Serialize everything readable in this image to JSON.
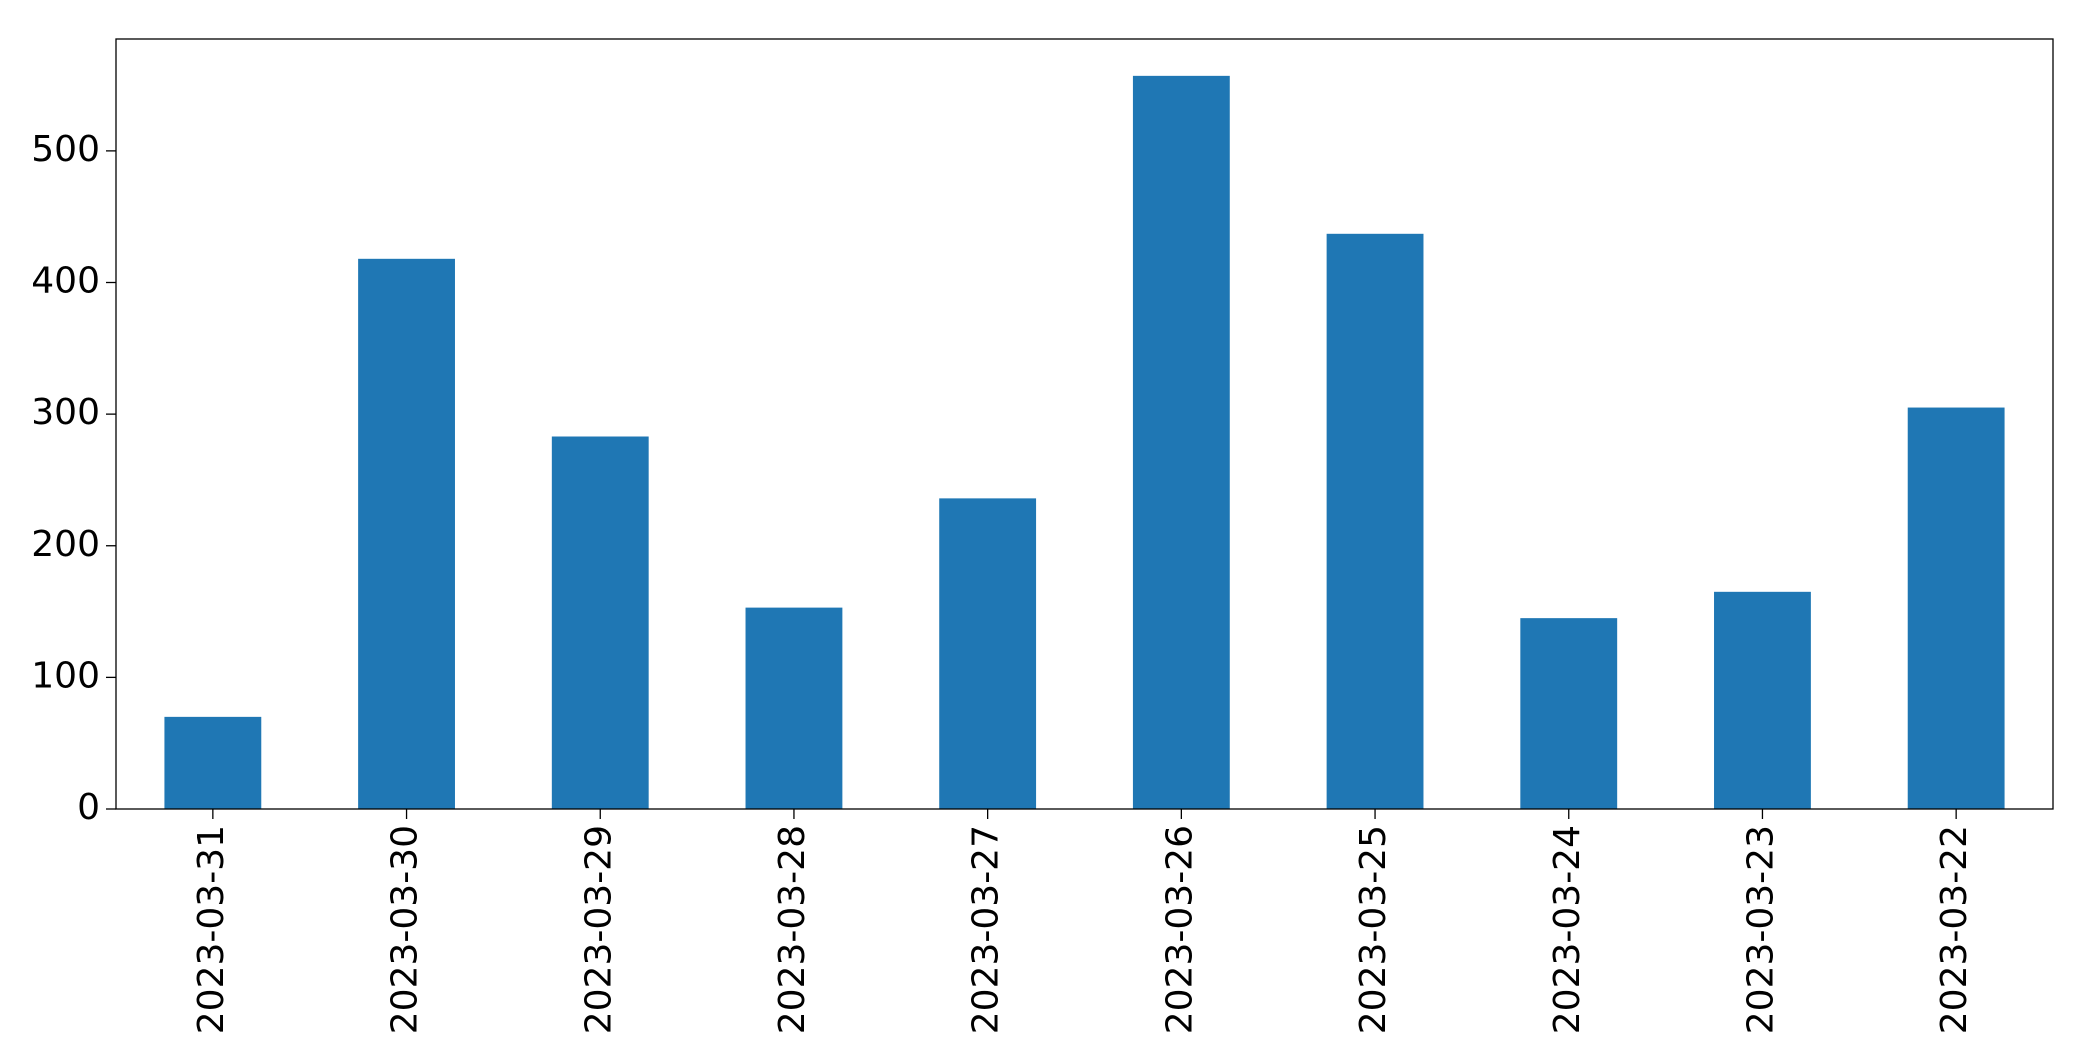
{
  "chart_data": {
    "type": "bar",
    "categories": [
      "2023-03-31",
      "2023-03-30",
      "2023-03-29",
      "2023-03-28",
      "2023-03-27",
      "2023-03-26",
      "2023-03-25",
      "2023-03-24",
      "2023-03-23",
      "2023-03-22"
    ],
    "values": [
      70,
      418,
      283,
      153,
      236,
      557,
      437,
      145,
      165,
      305
    ],
    "color": "#1f77b4",
    "ylim": [
      0,
      585
    ],
    "yticks": [
      0,
      100,
      200,
      300,
      400,
      500
    ],
    "grid": false
  }
}
